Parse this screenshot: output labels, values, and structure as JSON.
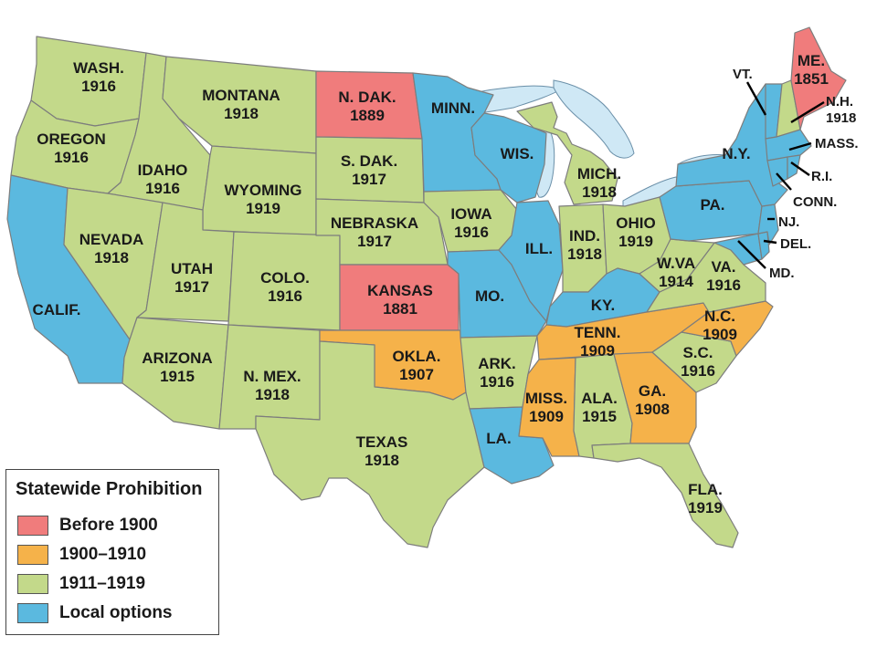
{
  "colors": {
    "before_1900": "#f07c7c",
    "y1900_1910": "#f5b24a",
    "y1911_1919": "#c3d98a",
    "local_options": "#5bb9df"
  },
  "states": [
    {
      "id": "wash",
      "name": "WASH.",
      "year": "1916",
      "category": "y1911_1919"
    },
    {
      "id": "oregon",
      "name": "OREGON",
      "year": "1916",
      "category": "y1911_1919"
    },
    {
      "id": "calif",
      "name": "CALIF.",
      "year": "",
      "category": "local_options"
    },
    {
      "id": "idaho",
      "name": "IDAHO",
      "year": "1916",
      "category": "y1911_1919"
    },
    {
      "id": "nevada",
      "name": "NEVADA",
      "year": "1918",
      "category": "y1911_1919"
    },
    {
      "id": "montana",
      "name": "MONTANA",
      "year": "1918",
      "category": "y1911_1919"
    },
    {
      "id": "wyoming",
      "name": "WYOMING",
      "year": "1919",
      "category": "y1911_1919"
    },
    {
      "id": "utah",
      "name": "UTAH",
      "year": "1917",
      "category": "y1911_1919"
    },
    {
      "id": "colo",
      "name": "COLO.",
      "year": "1916",
      "category": "y1911_1919"
    },
    {
      "id": "arizona",
      "name": "ARIZONA",
      "year": "1915",
      "category": "y1911_1919"
    },
    {
      "id": "nmex",
      "name": "N. MEX.",
      "year": "1918",
      "category": "y1911_1919"
    },
    {
      "id": "ndak",
      "name": "N. DAK.",
      "year": "1889",
      "category": "before_1900"
    },
    {
      "id": "sdak",
      "name": "S. DAK.",
      "year": "1917",
      "category": "y1911_1919"
    },
    {
      "id": "nebraska",
      "name": "NEBRASKA",
      "year": "1917",
      "category": "y1911_1919"
    },
    {
      "id": "kansas",
      "name": "KANSAS",
      "year": "1881",
      "category": "before_1900"
    },
    {
      "id": "okla",
      "name": "OKLA.",
      "year": "1907",
      "category": "y1900_1910"
    },
    {
      "id": "texas",
      "name": "TEXAS",
      "year": "1918",
      "category": "y1911_1919"
    },
    {
      "id": "minn",
      "name": "MINN.",
      "year": "",
      "category": "local_options"
    },
    {
      "id": "iowa",
      "name": "IOWA",
      "year": "1916",
      "category": "y1911_1919"
    },
    {
      "id": "mo",
      "name": "MO.",
      "year": "",
      "category": "local_options"
    },
    {
      "id": "ark",
      "name": "ARK.",
      "year": "1916",
      "category": "y1911_1919"
    },
    {
      "id": "la",
      "name": "LA.",
      "year": "",
      "category": "local_options"
    },
    {
      "id": "wis",
      "name": "WIS.",
      "year": "",
      "category": "local_options"
    },
    {
      "id": "ill",
      "name": "ILL.",
      "year": "",
      "category": "local_options"
    },
    {
      "id": "mich",
      "name": "MICH.",
      "year": "1918",
      "category": "y1911_1919"
    },
    {
      "id": "ind",
      "name": "IND.",
      "year": "1918",
      "category": "y1911_1919"
    },
    {
      "id": "ohio",
      "name": "OHIO",
      "year": "1919",
      "category": "y1911_1919"
    },
    {
      "id": "ky",
      "name": "KY.",
      "year": "",
      "category": "local_options"
    },
    {
      "id": "tenn",
      "name": "TENN.",
      "year": "1909",
      "category": "y1900_1910"
    },
    {
      "id": "miss",
      "name": "MISS.",
      "year": "1909",
      "category": "y1900_1910"
    },
    {
      "id": "ala",
      "name": "ALA.",
      "year": "1915",
      "category": "y1911_1919"
    },
    {
      "id": "ga",
      "name": "GA.",
      "year": "1908",
      "category": "y1900_1910"
    },
    {
      "id": "fla",
      "name": "FLA.",
      "year": "1919",
      "category": "y1911_1919"
    },
    {
      "id": "sc",
      "name": "S.C.",
      "year": "1916",
      "category": "y1911_1919"
    },
    {
      "id": "nc",
      "name": "N.C.",
      "year": "1909",
      "category": "y1900_1910"
    },
    {
      "id": "va",
      "name": "VA.",
      "year": "1916",
      "category": "y1911_1919"
    },
    {
      "id": "wva",
      "name": "W.VA",
      "year": "1914",
      "category": "y1911_1919"
    },
    {
      "id": "pa",
      "name": "PA.",
      "year": "",
      "category": "local_options"
    },
    {
      "id": "ny",
      "name": "N.Y.",
      "year": "",
      "category": "local_options"
    },
    {
      "id": "me",
      "name": "ME.",
      "year": "1851",
      "category": "before_1900"
    },
    {
      "id": "vt",
      "name": "VT.",
      "year": "",
      "category": "local_options"
    },
    {
      "id": "nh",
      "name": "N.H.",
      "year": "1918",
      "category": "y1911_1919"
    },
    {
      "id": "mass",
      "name": "MASS.",
      "year": "",
      "category": "local_options"
    },
    {
      "id": "ri",
      "name": "R.I.",
      "year": "",
      "category": "local_options"
    },
    {
      "id": "conn",
      "name": "CONN.",
      "year": "",
      "category": "local_options"
    },
    {
      "id": "nj",
      "name": "NJ.",
      "year": "",
      "category": "local_options"
    },
    {
      "id": "del",
      "name": "DEL.",
      "year": "",
      "category": "local_options"
    },
    {
      "id": "md",
      "name": "MD.",
      "year": "",
      "category": "local_options"
    }
  ],
  "legend": {
    "title": "Statewide Prohibition",
    "items": [
      {
        "label": "Before 1900",
        "category": "before_1900"
      },
      {
        "label": "1900–1910",
        "category": "y1900_1910"
      },
      {
        "label": "1911–1919",
        "category": "y1911_1919"
      },
      {
        "label": "Local options",
        "category": "local_options"
      }
    ]
  }
}
